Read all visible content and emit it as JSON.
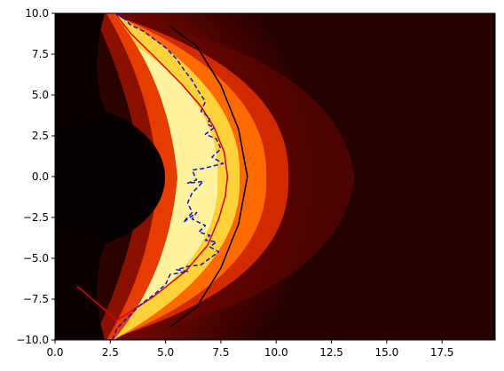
{
  "chart_data": {
    "type": "heatmap",
    "title": "",
    "xlabel": "",
    "ylabel": "",
    "xlim": [
      0,
      19.9
    ],
    "ylim": [
      -10,
      10
    ],
    "x_ticks": [
      0.0,
      2.5,
      5.0,
      7.5,
      10.0,
      12.5,
      15.0,
      17.5
    ],
    "x_tick_labels": [
      "0.0",
      "2.5",
      "5.0",
      "7.5",
      "10.0",
      "12.5",
      "15.0",
      "17.5"
    ],
    "y_ticks": [
      10.0,
      7.5,
      5.0,
      2.5,
      0.0,
      -2.5,
      -5.0,
      -7.5,
      -10.0
    ],
    "y_tick_labels": [
      "10.0",
      "7.5",
      "5.0",
      "2.5",
      "0.0",
      "−2.5",
      "−5.0",
      "−7.5",
      "−10.0"
    ],
    "colormap": "hot",
    "colors": {
      "axes": "#000000",
      "black_curve": "#000000",
      "red_curve": "#e00000",
      "blue_dashed": "#1010d0"
    },
    "series": [
      {
        "style": "solid-black",
        "x": [
          5.2,
          6.4,
          7.5,
          8.3,
          8.7,
          8.3,
          7.5,
          6.4,
          5.2
        ],
        "y": [
          9.2,
          8.0,
          5.6,
          2.9,
          0.0,
          -2.9,
          -5.6,
          -8.0,
          -9.2
        ]
      },
      {
        "style": "solid-red",
        "x": [
          1.0,
          2.8,
          4.4,
          5.9,
          6.9,
          7.4,
          7.7,
          7.8,
          7.65,
          7.2,
          6.6,
          5.7,
          4.6,
          3.4,
          2.7
        ],
        "y": [
          -6.7,
          -8.8,
          -7.4,
          -5.8,
          -4.2,
          -2.6,
          -1.2,
          0.0,
          1.5,
          3.0,
          4.3,
          5.7,
          7.2,
          8.8,
          10.0
        ]
      },
      {
        "style": "dashed-blue",
        "x": [
          2.8,
          3.2,
          3.4,
          4.0,
          4.5,
          5.0,
          5.5,
          5.8,
          6.2,
          6.5,
          6.8,
          6.6,
          7.0,
          6.9,
          7.2,
          6.8,
          7.3,
          7.5,
          7.1,
          7.6,
          6.7,
          6.2,
          6.4,
          6.0,
          6.7,
          6.2,
          6.0,
          6.2,
          5.8,
          6.1,
          6.4,
          6.2,
          6.8,
          6.5,
          7.0,
          6.8,
          7.3,
          7.0,
          7.4,
          7.0,
          6.6,
          6.0,
          5.5,
          6.0,
          5.2,
          5.0,
          4.5,
          3.9,
          3.3,
          2.8,
          2.6,
          0.0
        ],
        "y": [
          10.0,
          9.6,
          9.3,
          8.9,
          8.4,
          7.9,
          7.2,
          6.6,
          5.9,
          5.2,
          4.6,
          4.0,
          3.6,
          3.2,
          3.0,
          2.6,
          2.3,
          1.7,
          1.2,
          0.8,
          0.5,
          0.4,
          -0.2,
          -0.4,
          -0.3,
          -1.0,
          -1.6,
          -2.2,
          -2.8,
          -2.5,
          -2.2,
          -2.6,
          -3.0,
          -3.4,
          -3.6,
          -3.9,
          -4.0,
          -4.3,
          -4.6,
          -5.0,
          -5.4,
          -5.5,
          -5.7,
          -5.8,
          -6.0,
          -6.6,
          -7.2,
          -7.8,
          -8.6,
          -9.3,
          -10.0,
          -10.0
        ]
      }
    ]
  }
}
